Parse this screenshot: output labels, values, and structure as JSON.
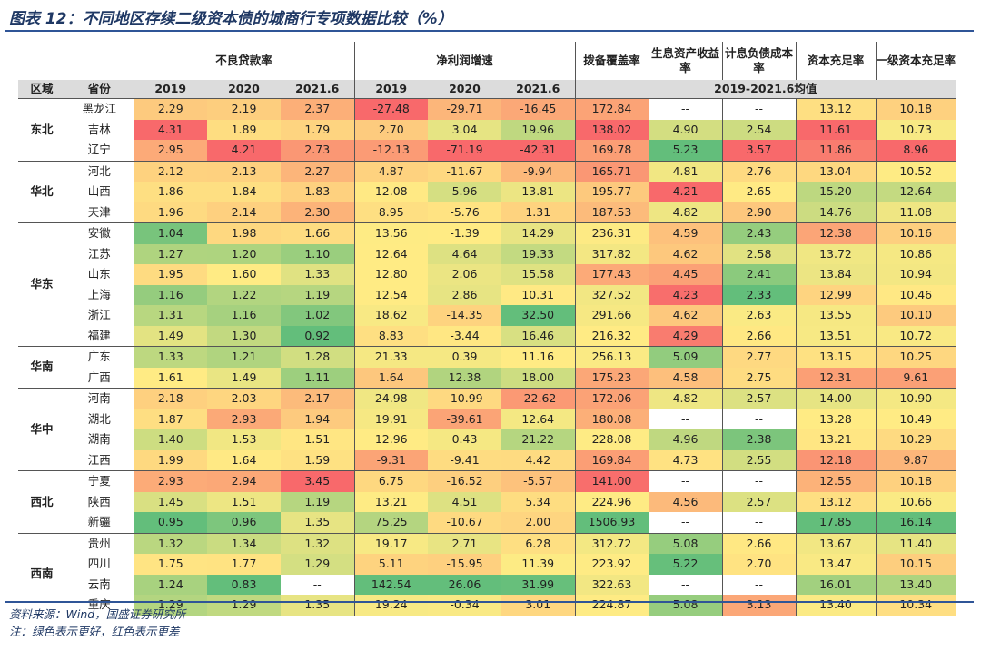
{
  "title": "图表 12：不同地区存续二级资本债的城商行专项数据比较（%）",
  "source_note": "资料来源：Wind，国盛证券研究所",
  "color_note": "注：绿色表示更好，红色表示更差",
  "colors": {
    "good": "#63be7b",
    "mid": "#ffeb84",
    "bad": "#f8696b"
  },
  "header": {
    "npl": "不良贷款率",
    "profit": "净利润增速",
    "coverage": "拨备覆盖率",
    "yield": "生息资产收益率",
    "cost": "计息负债成本率",
    "car": "资本充足率",
    "tier1": "一级资本充足率",
    "region": "区域",
    "province": "省份",
    "years": [
      "2019",
      "2020",
      "2021.6",
      "2019",
      "2020",
      "2021.6"
    ],
    "avg_label": "2019-2021.6均值"
  },
  "chart_data": {
    "type": "table",
    "title": "图表 12：不同地区存续二级资本债的城商行专项数据比较（%）",
    "columns": [
      "不良贷款率 2019",
      "不良贷款率 2020",
      "不良贷款率 2021.6",
      "净利润增速 2019",
      "净利润增速 2020",
      "净利润增速 2021.6",
      "拨备覆盖率",
      "生息资产收益率",
      "计息负债成本率",
      "资本充足率",
      "一级资本充足率"
    ],
    "regions": [
      {
        "name": "东北",
        "rows": [
          {
            "province": "黑龙江",
            "values": [
              "2.29",
              "2.19",
              "2.37",
              "-27.48",
              "-29.71",
              "-16.45",
              "172.84",
              "--",
              "--",
              "13.12",
              "10.18"
            ]
          },
          {
            "province": "吉林",
            "values": [
              "4.31",
              "1.89",
              "1.79",
              "2.70",
              "3.04",
              "19.96",
              "138.02",
              "4.90",
              "2.54",
              "11.61",
              "10.73"
            ]
          },
          {
            "province": "辽宁",
            "values": [
              "2.95",
              "4.21",
              "2.73",
              "-12.13",
              "-71.19",
              "-42.31",
              "169.78",
              "5.23",
              "3.57",
              "11.86",
              "8.96"
            ]
          }
        ]
      },
      {
        "name": "华北",
        "rows": [
          {
            "province": "河北",
            "values": [
              "2.12",
              "2.13",
              "2.27",
              "4.87",
              "-11.67",
              "-9.94",
              "165.71",
              "4.81",
              "2.76",
              "13.04",
              "10.52"
            ]
          },
          {
            "province": "山西",
            "values": [
              "1.86",
              "1.84",
              "1.83",
              "12.08",
              "5.96",
              "13.81",
              "195.77",
              "4.21",
              "2.65",
              "15.20",
              "12.64"
            ]
          },
          {
            "province": "天津",
            "values": [
              "1.96",
              "2.14",
              "2.30",
              "8.95",
              "-5.76",
              "1.31",
              "187.53",
              "4.82",
              "2.90",
              "14.76",
              "11.08"
            ]
          }
        ]
      },
      {
        "name": "华东",
        "rows": [
          {
            "province": "安徽",
            "values": [
              "1.04",
              "1.98",
              "1.66",
              "13.56",
              "-1.39",
              "14.29",
              "236.31",
              "4.59",
              "2.43",
              "12.38",
              "10.16"
            ]
          },
          {
            "province": "江苏",
            "values": [
              "1.27",
              "1.20",
              "1.10",
              "12.64",
              "4.64",
              "19.33",
              "317.82",
              "4.62",
              "2.58",
              "13.72",
              "10.86"
            ]
          },
          {
            "province": "山东",
            "values": [
              "1.95",
              "1.60",
              "1.33",
              "12.80",
              "2.06",
              "15.58",
              "177.43",
              "4.45",
              "2.41",
              "13.84",
              "10.94"
            ]
          },
          {
            "province": "上海",
            "values": [
              "1.16",
              "1.22",
              "1.19",
              "12.54",
              "2.86",
              "10.31",
              "327.52",
              "4.23",
              "2.33",
              "12.99",
              "10.46"
            ]
          },
          {
            "province": "浙江",
            "values": [
              "1.31",
              "1.16",
              "1.02",
              "18.62",
              "-14.35",
              "32.50",
              "291.66",
              "4.62",
              "2.63",
              "13.55",
              "10.10"
            ]
          },
          {
            "province": "福建",
            "values": [
              "1.49",
              "1.30",
              "0.92",
              "8.83",
              "-3.44",
              "16.46",
              "216.32",
              "4.29",
              "2.66",
              "13.51",
              "10.72"
            ]
          }
        ]
      },
      {
        "name": "华南",
        "rows": [
          {
            "province": "广东",
            "values": [
              "1.33",
              "1.21",
              "1.28",
              "21.33",
              "0.39",
              "11.16",
              "256.13",
              "5.09",
              "2.77",
              "13.15",
              "10.25"
            ]
          },
          {
            "province": "广西",
            "values": [
              "1.61",
              "1.49",
              "1.11",
              "1.64",
              "12.38",
              "18.00",
              "175.23",
              "4.58",
              "2.75",
              "12.31",
              "9.61"
            ]
          }
        ]
      },
      {
        "name": "华中",
        "rows": [
          {
            "province": "河南",
            "values": [
              "2.18",
              "2.03",
              "2.17",
              "24.98",
              "-10.99",
              "-22.62",
              "172.06",
              "4.82",
              "2.57",
              "14.00",
              "10.90"
            ]
          },
          {
            "province": "湖北",
            "values": [
              "1.87",
              "2.93",
              "1.94",
              "19.91",
              "-39.61",
              "12.64",
              "180.08",
              "--",
              "--",
              "13.28",
              "10.49"
            ]
          },
          {
            "province": "湖南",
            "values": [
              "1.40",
              "1.53",
              "1.51",
              "12.96",
              "0.43",
              "21.22",
              "228.08",
              "4.96",
              "2.38",
              "13.21",
              "10.29"
            ]
          },
          {
            "province": "江西",
            "values": [
              "1.99",
              "1.64",
              "1.59",
              "-9.31",
              "-9.41",
              "4.42",
              "169.84",
              "4.73",
              "2.55",
              "12.18",
              "9.87"
            ]
          }
        ]
      },
      {
        "name": "西北",
        "rows": [
          {
            "province": "宁夏",
            "values": [
              "2.93",
              "2.94",
              "3.45",
              "6.75",
              "-16.52",
              "-5.57",
              "141.00",
              "--",
              "--",
              "12.55",
              "10.18"
            ]
          },
          {
            "province": "陕西",
            "values": [
              "1.45",
              "1.51",
              "1.19",
              "13.21",
              "4.51",
              "5.34",
              "224.96",
              "4.56",
              "2.57",
              "13.12",
              "10.66"
            ]
          },
          {
            "province": "新疆",
            "values": [
              "0.95",
              "0.96",
              "1.35",
              "75.25",
              "-10.67",
              "2.00",
              "1506.93",
              "--",
              "--",
              "17.85",
              "16.14"
            ]
          }
        ]
      },
      {
        "name": "西南",
        "rows": [
          {
            "province": "贵州",
            "values": [
              "1.32",
              "1.34",
              "1.32",
              "19.17",
              "2.71",
              "6.28",
              "312.72",
              "5.08",
              "2.66",
              "13.67",
              "11.40"
            ]
          },
          {
            "province": "四川",
            "values": [
              "1.75",
              "1.77",
              "1.29",
              "5.11",
              "-15.95",
              "11.39",
              "223.92",
              "5.22",
              "2.70",
              "13.47",
              "10.15"
            ]
          },
          {
            "province": "云南",
            "values": [
              "1.24",
              "0.83",
              "--",
              "142.54",
              "26.06",
              "31.99",
              "322.63",
              "--",
              "--",
              "16.01",
              "13.40"
            ]
          },
          {
            "province": "重庆",
            "values": [
              "1.29",
              "1.29",
              "1.35",
              "19.24",
              "-0.34",
              "3.01",
              "224.87",
              "5.08",
              "3.13",
              "13.40",
              "10.34"
            ]
          }
        ]
      }
    ]
  }
}
